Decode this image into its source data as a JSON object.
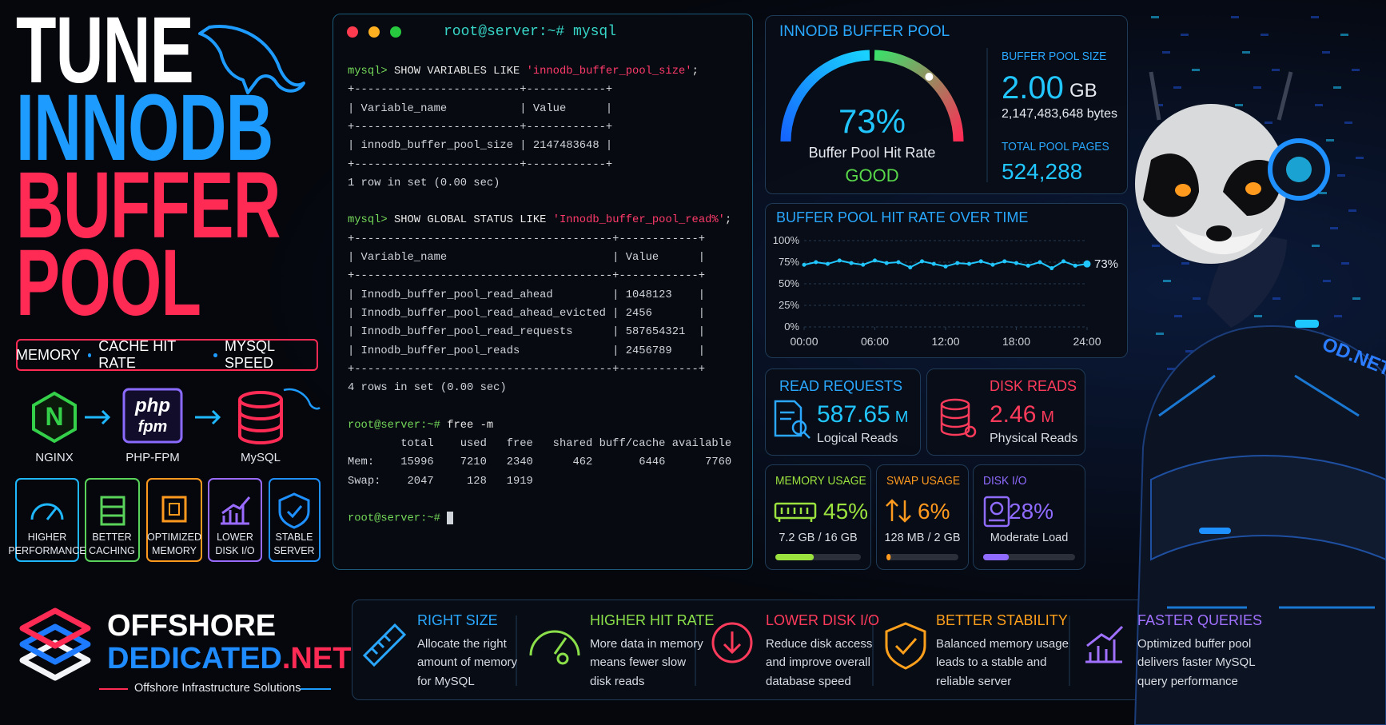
{
  "hero": {
    "title_lines": [
      "TUNE",
      "INNODB",
      "BUFFER",
      "POOL"
    ],
    "tagline": [
      "MEMORY",
      "CACHE HIT RATE",
      "MYSQL SPEED"
    ]
  },
  "stack": [
    {
      "label": "NGINX",
      "icon": "N"
    },
    {
      "label": "PHP-FPM",
      "icon_lines": [
        "php",
        "fpm"
      ]
    },
    {
      "label": "MySQL"
    }
  ],
  "benefits": [
    [
      "HIGHER",
      "PERFORMANCE"
    ],
    [
      "BETTER",
      "CACHING"
    ],
    [
      "OPTIMIZED",
      "MEMORY"
    ],
    [
      "LOWER",
      "DISK I/O"
    ],
    [
      "STABLE",
      "SERVER"
    ]
  ],
  "logo": {
    "line1": "OFFSHORE",
    "line2": "DEDICATED",
    "suffix": ".NET",
    "tagline": "Offshore Infrastructure Solutions"
  },
  "terminal": {
    "title": "root@server:~# mysql",
    "blocks": [
      [
        {
          "prompt": "mysql>",
          "cmd": " SHOW VARIABLES LIKE ",
          "str": "'innodb_buffer_pool_size'",
          "tail": ";"
        },
        {
          "out": "+-------------------------+------------+"
        },
        {
          "out": "| Variable_name           | Value      |"
        },
        {
          "out": "+-------------------------+------------+"
        },
        {
          "out": "| innodb_buffer_pool_size | 2147483648 |"
        },
        {
          "out": "+-------------------------+------------+"
        },
        {
          "out": "1 row in set (0.00 sec)"
        }
      ],
      [
        {
          "prompt": "mysql>",
          "cmd": " SHOW GLOBAL STATUS LIKE ",
          "str": "'Innodb_buffer_pool_read%'",
          "tail": ";"
        },
        {
          "out": "+---------------------------------------+------------+"
        },
        {
          "out": "| Variable_name                         | Value      |"
        },
        {
          "out": "+---------------------------------------+------------+"
        },
        {
          "out": "| Innodb_buffer_pool_read_ahead         | 1048123    |"
        },
        {
          "out": "| Innodb_buffer_pool_read_ahead_evicted | 2456       |"
        },
        {
          "out": "| Innodb_buffer_pool_read_requests      | 587654321  |"
        },
        {
          "out": "| Innodb_buffer_pool_reads              | 2456789    |"
        },
        {
          "out": "+---------------------------------------+------------+"
        },
        {
          "out": "4 rows in set (0.00 sec)"
        }
      ],
      [
        {
          "prompt": "root@server:~#",
          "cmd": " free -m"
        },
        {
          "out": "        total    used   free   shared buff/cache available"
        },
        {
          "out": "Mem:    15996    7210   2340      462       6446      7760"
        },
        {
          "out": "Swap:    2047     128   1919"
        }
      ],
      [
        {
          "prompt": "root@server:~#"
        }
      ]
    ]
  },
  "buffer_pool": {
    "title": "INNODB BUFFER POOL",
    "gauge": {
      "value": 73,
      "max": 100,
      "label": "73%",
      "caption": "Buffer Pool Hit Rate",
      "status": "GOOD"
    },
    "size_title": "BUFFER POOL SIZE",
    "size_value": "2.00",
    "size_unit": "GB",
    "size_bytes": "2,147,483,648 bytes",
    "pages_title": "TOTAL POOL PAGES",
    "pages_value": "524,288"
  },
  "hit_rate_chart": {
    "type": "line",
    "title": "BUFFER POOL HIT RATE OVER TIME",
    "color": "#22c6ff",
    "x": [
      0,
      1,
      2,
      3,
      4,
      5,
      6,
      7,
      8,
      9,
      10,
      11,
      12,
      13,
      14,
      15,
      16,
      17,
      18,
      19,
      20,
      21,
      22,
      23,
      24
    ],
    "values": [
      72,
      75,
      73,
      77,
      74,
      72,
      77,
      74,
      75,
      69,
      76,
      73,
      70,
      74,
      73,
      76,
      72,
      76,
      74,
      71,
      75,
      68,
      76,
      71,
      73
    ],
    "end_label": "73%",
    "xlim": [
      0,
      24
    ],
    "xticks": [
      {
        "value": 0,
        "label": "00:00"
      },
      {
        "value": 6,
        "label": "06:00"
      },
      {
        "value": 12,
        "label": "12:00"
      },
      {
        "value": 18,
        "label": "18:00"
      },
      {
        "value": 24,
        "label": "24:00"
      }
    ],
    "ylim": [
      0,
      100
    ],
    "yticks": [
      {
        "value": 0,
        "label": "0%"
      },
      {
        "value": 25,
        "label": "25%"
      },
      {
        "value": 50,
        "label": "50%"
      },
      {
        "value": 75,
        "label": "75%"
      },
      {
        "value": 100,
        "label": "100%"
      }
    ],
    "grid": true
  },
  "reads": [
    {
      "title": "READ REQUESTS",
      "value": "587.65",
      "unit": "M",
      "caption": "Logical Reads"
    },
    {
      "title": "DISK READS",
      "value": "2.46",
      "unit": "M",
      "caption": "Physical Reads"
    }
  ],
  "usage": [
    {
      "title": "MEMORY USAGE",
      "value": 45,
      "label": "45%",
      "detail": "7.2 GB / 16 GB",
      "color": "#9be23f"
    },
    {
      "title": "SWAP USAGE",
      "value": 6,
      "label": "6%",
      "detail": "128 MB / 2 GB",
      "color": "#ff9a1f"
    },
    {
      "title": "DISK I/O",
      "value": 28,
      "label": "28%",
      "detail": "Moderate Load",
      "color": "#8f6bff"
    }
  ],
  "features": [
    {
      "title": "RIGHT SIZE",
      "lines": [
        "Allocate the right",
        "amount of memory",
        "for MySQL"
      ]
    },
    {
      "title": "HIGHER HIT RATE",
      "lines": [
        "More data in memory",
        "means fewer slow",
        "disk reads"
      ]
    },
    {
      "title": "LOWER DISK I/O",
      "lines": [
        "Reduce disk access",
        "and improve overall",
        "database speed"
      ]
    },
    {
      "title": "BETTER STABILITY",
      "lines": [
        "Balanced memory usage",
        "leads to a stable and",
        "reliable server"
      ]
    },
    {
      "title": "FASTER QUERIES",
      "lines": [
        "Optimized buffer pool",
        "delivers faster MySQL",
        "query performance"
      ]
    }
  ],
  "mascot": {
    "badge": "OD.NET"
  }
}
